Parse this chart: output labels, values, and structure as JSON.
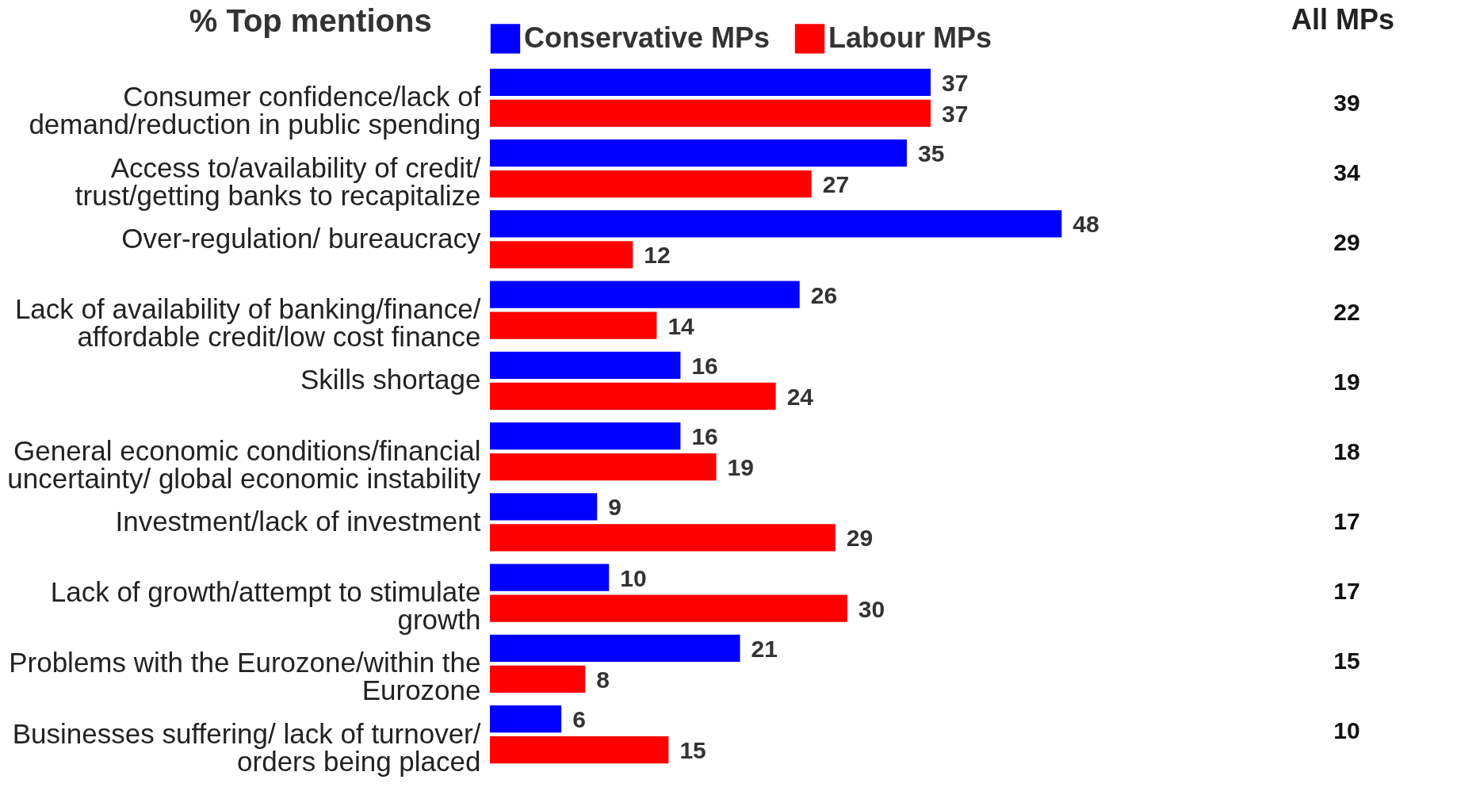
{
  "chart_data": {
    "type": "bar",
    "orientation": "horizontal",
    "title": "% Top mentions",
    "legend": "top",
    "data_labels": true,
    "categories": [
      "Consumer confidence/lack of demand/reduction in public spending",
      "Access to/availability of credit/ trust/getting banks to recapitalize",
      "Over-regulation/ bureaucracy",
      "Lack of availability of banking/finance/ affordable credit/low cost finance",
      "Skills shortage",
      "General economic conditions/financial uncertainty/ global economic instability",
      "Investment/lack of investment",
      "Lack of growth/attempt to stimulate growth",
      "Problems with the Eurozone/within the Eurozone",
      "Businesses suffering/ lack of turnover/ orders being placed"
    ],
    "series": [
      {
        "name": "Conservative MPs",
        "color": "#0000ff",
        "values": [
          37,
          35,
          48,
          26,
          16,
          16,
          9,
          10,
          21,
          6
        ]
      },
      {
        "name": "Labour MPs",
        "color": "#ff0000",
        "values": [
          37,
          27,
          12,
          14,
          24,
          19,
          29,
          30,
          8,
          15
        ]
      }
    ],
    "annotations": [
      "All MPs",
      "39",
      "34",
      "29",
      "22",
      "19",
      "18",
      "17",
      "17",
      "15",
      "10"
    ]
  }
}
